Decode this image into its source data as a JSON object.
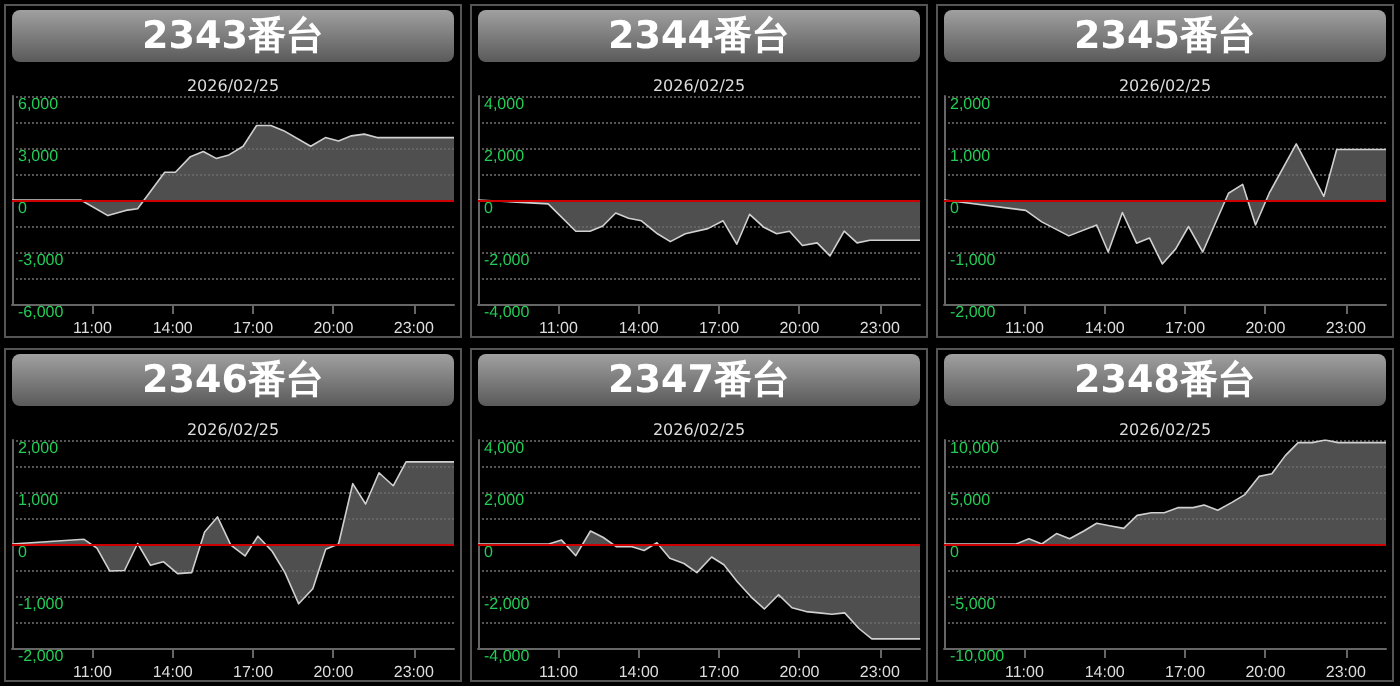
{
  "chart_data": [
    {
      "type": "area",
      "title": "2343番台",
      "subtitle": "2026/02/25",
      "xlim": [
        8,
        24.5
      ],
      "xticks": [
        {
          "value": 11,
          "label": "11:00"
        },
        {
          "value": 14,
          "label": "14:00"
        },
        {
          "value": 17,
          "label": "17:00"
        },
        {
          "value": 20,
          "label": "20:00"
        },
        {
          "value": 23,
          "label": "23:00"
        }
      ],
      "ylim": [
        -6000,
        6000
      ],
      "yticks": [
        {
          "value": -6000,
          "label": "-6,000"
        },
        {
          "value": -4500,
          "label": null
        },
        {
          "value": -3000,
          "label": "-3,000"
        },
        {
          "value": -1500,
          "label": null
        },
        {
          "value": 0,
          "label": "0"
        },
        {
          "value": 1500,
          "label": null
        },
        {
          "value": 3000,
          "label": "3,000"
        },
        {
          "value": 4500,
          "label": null
        },
        {
          "value": 6000,
          "label": "6,000"
        }
      ],
      "grid": "y",
      "ref_lines": [
        {
          "axis": "y",
          "value": 0,
          "color": "#cc0000"
        }
      ],
      "x": [
        8,
        10.57,
        11.58,
        12.25,
        12.69,
        13.7,
        14.1,
        14.66,
        15.14,
        15.62,
        16.1,
        16.63,
        17.13,
        17.66,
        18.14,
        19.15,
        19.7,
        20.19,
        20.67,
        21.15,
        21.63,
        24.5
      ],
      "series": [
        {
          "color": "#d0d0d0",
          "values": [
            0,
            0,
            -900,
            -600,
            -500,
            1600,
            1600,
            2500,
            2800,
            2400,
            2600,
            3100,
            4300,
            4300,
            4000,
            3100,
            3600,
            3400,
            3700,
            3800,
            3600,
            3600
          ]
        }
      ]
    },
    {
      "type": "area",
      "title": "2344番台",
      "subtitle": "2026/02/25",
      "xlim": [
        8,
        24.5
      ],
      "xticks": [
        {
          "value": 11,
          "label": "11:00"
        },
        {
          "value": 14,
          "label": "14:00"
        },
        {
          "value": 17,
          "label": "17:00"
        },
        {
          "value": 20,
          "label": "20:00"
        },
        {
          "value": 23,
          "label": "23:00"
        }
      ],
      "ylim": [
        -4000,
        4000
      ],
      "yticks": [
        {
          "value": -4000,
          "label": "-4,000"
        },
        {
          "value": -3000,
          "label": null
        },
        {
          "value": -2000,
          "label": "-2,000"
        },
        {
          "value": -1000,
          "label": null
        },
        {
          "value": 0,
          "label": "0"
        },
        {
          "value": 1000,
          "label": null
        },
        {
          "value": 2000,
          "label": "2,000"
        },
        {
          "value": 3000,
          "label": null
        },
        {
          "value": 4000,
          "label": "4,000"
        }
      ],
      "grid": "y",
      "ref_lines": [
        {
          "axis": "y",
          "value": 0,
          "color": "#cc0000"
        }
      ],
      "x": [
        8,
        10.62,
        11.65,
        12.18,
        12.66,
        13.14,
        13.62,
        14.1,
        14.7,
        15.18,
        15.74,
        16.58,
        17.15,
        17.66,
        18.14,
        18.67,
        19.15,
        19.63,
        20.11,
        20.66,
        21.14,
        21.67,
        22.15,
        22.63,
        24.5
      ],
      "series": [
        {
          "color": "#d0d0d0",
          "values": [
            0,
            -150,
            -1200,
            -1200,
            -1000,
            -500,
            -700,
            -800,
            -1300,
            -1600,
            -1300,
            -1100,
            -800,
            -1700,
            -550,
            -1050,
            -1300,
            -1200,
            -1750,
            -1650,
            -2150,
            -1200,
            -1650,
            -1550,
            -1550
          ]
        }
      ]
    },
    {
      "type": "area",
      "title": "2345番台",
      "subtitle": "2026/02/25",
      "xlim": [
        8,
        24.5
      ],
      "xticks": [
        {
          "value": 11,
          "label": "11:00"
        },
        {
          "value": 14,
          "label": "14:00"
        },
        {
          "value": 17,
          "label": "17:00"
        },
        {
          "value": 20,
          "label": "20:00"
        },
        {
          "value": 23,
          "label": "23:00"
        }
      ],
      "ylim": [
        -2000,
        2000
      ],
      "yticks": [
        {
          "value": -2000,
          "label": "-2,000"
        },
        {
          "value": -1500,
          "label": null
        },
        {
          "value": -1000,
          "label": "-1,000"
        },
        {
          "value": -500,
          "label": null
        },
        {
          "value": 0,
          "label": "0"
        },
        {
          "value": 500,
          "label": null
        },
        {
          "value": 1000,
          "label": "1,000"
        },
        {
          "value": 1500,
          "label": null
        },
        {
          "value": 2000,
          "label": "2,000"
        }
      ],
      "grid": "y",
      "ref_lines": [
        {
          "axis": "y",
          "value": 0,
          "color": "#cc0000"
        }
      ],
      "x": [
        8,
        11.05,
        11.65,
        12.66,
        13.7,
        14.13,
        14.66,
        15.19,
        15.67,
        16.15,
        16.65,
        17.13,
        17.66,
        18.62,
        19.15,
        19.63,
        20.14,
        21.15,
        22.18,
        22.66,
        24.5
      ],
      "series": [
        {
          "color": "#d0d0d0",
          "values": [
            0,
            -200,
            -420,
            -690,
            -480,
            -1000,
            -240,
            -830,
            -730,
            -1230,
            -940,
            -510,
            -1000,
            130,
            300,
            -480,
            130,
            1080,
            70,
            970,
            970
          ]
        }
      ]
    },
    {
      "type": "area",
      "title": "2346番台",
      "subtitle": "2026/02/25",
      "xlim": [
        8,
        24.5
      ],
      "xticks": [
        {
          "value": 11,
          "label": "11:00"
        },
        {
          "value": 14,
          "label": "14:00"
        },
        {
          "value": 17,
          "label": "17:00"
        },
        {
          "value": 20,
          "label": "20:00"
        },
        {
          "value": 23,
          "label": "23:00"
        }
      ],
      "ylim": [
        -2000,
        2000
      ],
      "yticks": [
        {
          "value": -2000,
          "label": "-2,000"
        },
        {
          "value": -1500,
          "label": null
        },
        {
          "value": -1000,
          "label": "-1,000"
        },
        {
          "value": -500,
          "label": null
        },
        {
          "value": 0,
          "label": "0"
        },
        {
          "value": 500,
          "label": null
        },
        {
          "value": 1000,
          "label": "1,000"
        },
        {
          "value": 1500,
          "label": null
        },
        {
          "value": 2000,
          "label": "2,000"
        }
      ],
      "grid": "y",
      "ref_lines": [
        {
          "axis": "y",
          "value": 0,
          "color": "#cc0000"
        }
      ],
      "x": [
        8,
        10.69,
        11.17,
        11.65,
        12.2,
        12.69,
        13.17,
        13.65,
        14.18,
        14.71,
        15.19,
        15.67,
        16.17,
        16.7,
        17.18,
        17.71,
        18.19,
        18.7,
        19.23,
        19.71,
        20.19,
        20.72,
        21.2,
        21.7,
        22.23,
        22.71,
        24.5
      ],
      "series": [
        {
          "color": "#d0d0d0",
          "values": [
            0,
            90,
            -80,
            -520,
            -510,
            10,
            -410,
            -340,
            -570,
            -550,
            230,
            520,
            -20,
            -230,
            150,
            -140,
            -550,
            -1150,
            -860,
            -100,
            0,
            1160,
            770,
            1370,
            1120,
            1580,
            1580
          ]
        }
      ]
    },
    {
      "type": "area",
      "title": "2347番台",
      "subtitle": "2026/02/25",
      "xlim": [
        8,
        24.5
      ],
      "xticks": [
        {
          "value": 11,
          "label": "11:00"
        },
        {
          "value": 14,
          "label": "14:00"
        },
        {
          "value": 17,
          "label": "17:00"
        },
        {
          "value": 20,
          "label": "20:00"
        },
        {
          "value": 23,
          "label": "23:00"
        }
      ],
      "ylim": [
        -4000,
        4000
      ],
      "yticks": [
        {
          "value": -4000,
          "label": "-4,000"
        },
        {
          "value": -3000,
          "label": null
        },
        {
          "value": -2000,
          "label": "-2,000"
        },
        {
          "value": -1000,
          "label": null
        },
        {
          "value": 0,
          "label": "0"
        },
        {
          "value": 1000,
          "label": null
        },
        {
          "value": 2000,
          "label": "2,000"
        },
        {
          "value": 3000,
          "label": null
        },
        {
          "value": 4000,
          "label": "4,000"
        }
      ],
      "grid": "y",
      "ref_lines": [
        {
          "axis": "y",
          "value": 0,
          "color": "#cc0000"
        }
      ],
      "x": [
        8,
        10.64,
        11.12,
        11.65,
        12.2,
        12.68,
        13.16,
        13.72,
        14.2,
        14.68,
        15.16,
        15.69,
        16.17,
        16.72,
        17.18,
        17.68,
        18.21,
        18.69,
        19.22,
        19.72,
        20.25,
        20.73,
        21.21,
        21.69,
        22.22,
        22.7,
        24.5
      ],
      "series": [
        {
          "color": "#d0d0d0",
          "values": [
            0,
            0,
            150,
            -450,
            500,
            250,
            -100,
            -100,
            -250,
            50,
            -550,
            -750,
            -1100,
            -500,
            -800,
            -1450,
            -2050,
            -2500,
            -1950,
            -2450,
            -2600,
            -2650,
            -2700,
            -2650,
            -3250,
            -3650,
            -3650
          ]
        }
      ]
    },
    {
      "type": "area",
      "title": "2348番台",
      "subtitle": "2026/02/25",
      "xlim": [
        8,
        24.5
      ],
      "xticks": [
        {
          "value": 11,
          "label": "11:00"
        },
        {
          "value": 14,
          "label": "14:00"
        },
        {
          "value": 17,
          "label": "17:00"
        },
        {
          "value": 20,
          "label": "20:00"
        },
        {
          "value": 23,
          "label": "23:00"
        }
      ],
      "ylim": [
        -10000,
        10000
      ],
      "yticks": [
        {
          "value": -10000,
          "label": "-10,000"
        },
        {
          "value": -7500,
          "label": null
        },
        {
          "value": -5000,
          "label": "-5,000"
        },
        {
          "value": -2500,
          "label": null
        },
        {
          "value": 0,
          "label": "0"
        },
        {
          "value": 2500,
          "label": null
        },
        {
          "value": 5000,
          "label": "5,000"
        },
        {
          "value": 7500,
          "label": null
        },
        {
          "value": 10000,
          "label": "10,000"
        }
      ],
      "grid": "y",
      "ref_lines": [
        {
          "axis": "y",
          "value": 0,
          "color": "#cc0000"
        }
      ],
      "x": [
        8,
        10.69,
        11.17,
        11.65,
        12.2,
        12.69,
        13.22,
        13.7,
        14.18,
        14.71,
        15.21,
        15.74,
        16.22,
        16.75,
        17.3,
        17.71,
        18.22,
        18.75,
        19.23,
        19.76,
        20.24,
        20.74,
        21.22,
        21.75,
        22.23,
        22.71,
        24.5
      ],
      "series": [
        {
          "color": "#d0d0d0",
          "values": [
            0,
            0,
            500,
            0,
            1000,
            500,
            1250,
            2000,
            1750,
            1500,
            2750,
            3000,
            3000,
            3500,
            3500,
            3750,
            3250,
            4000,
            4750,
            6500,
            6750,
            8500,
            9750,
            9750,
            10000,
            9750,
            9750
          ]
        }
      ]
    }
  ]
}
